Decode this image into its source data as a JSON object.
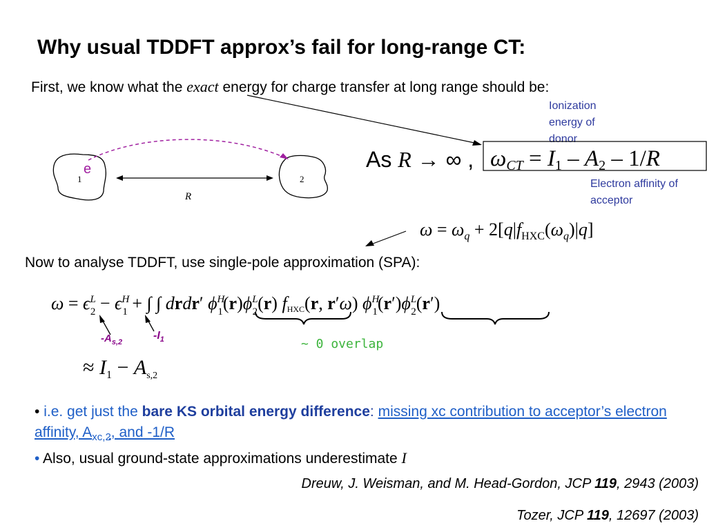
{
  "title": "Why usual TDDFT approx’s fail for long-range CT:",
  "exact_line": {
    "before": "First, we know what the ",
    "emph": "exact",
    "after": " energy for charge transfer at long range should be:"
  },
  "diagram": {
    "electron": "e",
    "donor_label": "1",
    "acceptor_label": "2",
    "distance_label": "R"
  },
  "annotations": {
    "ionization": "Ionization energy of donor",
    "affinity": "Electron affinity of acceptor"
  },
  "spa_line": "Now to analyse TDDFT, use single-pole approximation (SPA):",
  "spa_labels": {
    "as2": "-A",
    "as2_sub": "s,2",
    "i1": "-I",
    "i1_sub": "1",
    "overlap": "~ 0 overlap"
  },
  "bullet1": {
    "prefix": "i.e. get just the ",
    "bold": "bare KS orbital energy difference",
    "colon": ": ",
    "link": "missing xc contribution to acceptor’s electron affinity, A",
    "link_sub": "xc,2",
    "link_end": ",  and -1/R"
  },
  "bullet2": {
    "text": "Also, usual ground-state approximations underestimate ",
    "var": "I"
  },
  "ref1": {
    "before": "Dreuw, J. Weisman, and M. Head-Gordon, JCP ",
    "volume": "119",
    "after": ", 2943 (2003)"
  },
  "ref2": {
    "before": "Tozer, JCP ",
    "volume": "119",
    "after": ", 12697 (2003)"
  }
}
